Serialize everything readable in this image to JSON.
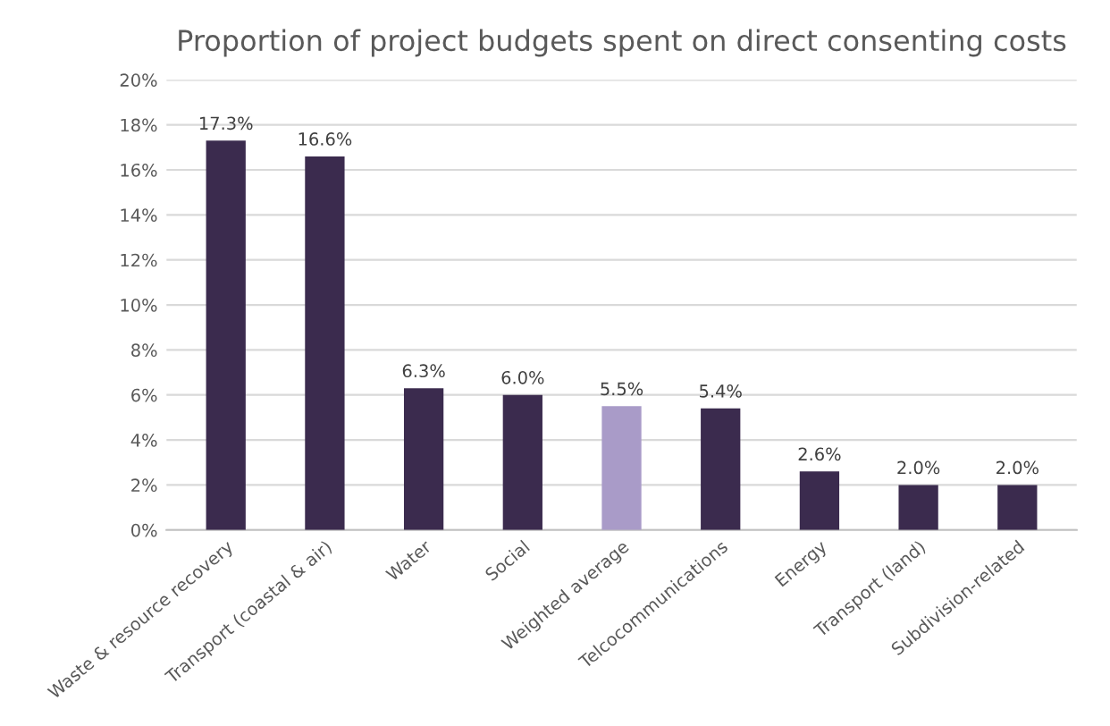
{
  "chart_data": {
    "type": "bar",
    "title": "Proportion of project budgets spent on direct consenting costs",
    "categories": [
      "Waste & resource recovery",
      "Transport (coastal & air)",
      "Water",
      "Social",
      "Weighted average",
      "Telcocommunications",
      "Energy",
      "Transport (land)",
      "Subdivision-related"
    ],
    "values": [
      17.3,
      16.6,
      6.3,
      6.0,
      5.5,
      5.4,
      2.6,
      2.0,
      2.0
    ],
    "colors": [
      "#3b2b4e",
      "#3b2b4e",
      "#3b2b4e",
      "#3b2b4e",
      "#a99bc8",
      "#3b2b4e",
      "#3b2b4e",
      "#3b2b4e",
      "#3b2b4e"
    ],
    "value_labels": [
      "17.3%",
      "16.6%",
      "6.3%",
      "6.0%",
      "5.5%",
      "5.4%",
      "2.6%",
      "2.0%",
      "2.0%"
    ],
    "ylim": [
      0,
      20
    ],
    "yticks": [
      {
        "value": 0,
        "label": "0%"
      },
      {
        "value": 2,
        "label": "2%"
      },
      {
        "value": 4,
        "label": "4%"
      },
      {
        "value": 6,
        "label": "6%"
      },
      {
        "value": 8,
        "label": "8%"
      },
      {
        "value": 10,
        "label": "10%"
      },
      {
        "value": 12,
        "label": "12%"
      },
      {
        "value": 14,
        "label": "14%"
      },
      {
        "value": 16,
        "label": "16%"
      },
      {
        "value": 18,
        "label": "18%"
      },
      {
        "value": 20,
        "label": "20%"
      }
    ],
    "grid": "y",
    "legend": false
  }
}
